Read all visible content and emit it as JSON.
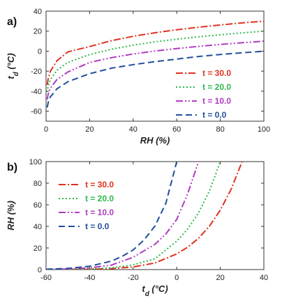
{
  "chart_data": [
    {
      "panel": "a)",
      "type": "line",
      "xlabel": "RH (%)",
      "ylabel_main": "t",
      "ylabel_sub": "d",
      "ylabel_unit": "(°C)",
      "xlim": [
        0,
        100
      ],
      "ylim": [
        -70,
        40
      ],
      "xticks": [
        0,
        20,
        40,
        60,
        80,
        100
      ],
      "yticks": [
        -60,
        -40,
        -20,
        0,
        20,
        40
      ],
      "legend_position": "lower-right",
      "series": [
        {
          "name": "t =  30.0",
          "color": "#e0301e",
          "dash": "10,3,2,3",
          "x": [
            0.5,
            1,
            2,
            5,
            10,
            20,
            30,
            40,
            50,
            60,
            70,
            80,
            90,
            100
          ],
          "y": [
            -33.8,
            -27.3,
            -20.0,
            -9.5,
            -0.7,
            4.6,
            10.5,
            14.9,
            18.4,
            21.4,
            23.9,
            26.2,
            28.2,
            30.0
          ]
        },
        {
          "name": "t =  20.0",
          "color": "#2db84a",
          "dash": "2,3",
          "x": [
            0.5,
            1,
            2,
            5,
            10,
            20,
            30,
            40,
            50,
            60,
            70,
            80,
            90,
            100
          ],
          "y": [
            -40.8,
            -35.0,
            -28.5,
            -19.1,
            -11.2,
            -3.4,
            1.9,
            6.0,
            9.3,
            12.0,
            14.4,
            16.4,
            18.3,
            20.0
          ]
        },
        {
          "name": "t =  10.0",
          "color": "#b03bc0",
          "dash": "10,3,2,3,2,3",
          "x": [
            0.5,
            1,
            2,
            5,
            10,
            20,
            30,
            40,
            50,
            60,
            70,
            80,
            90,
            100
          ],
          "y": [
            -48.3,
            -42.8,
            -36.9,
            -28.3,
            -20.8,
            -11.3,
            -6.5,
            -2.8,
            0.1,
            2.6,
            4.8,
            6.7,
            8.4,
            10.0
          ]
        },
        {
          "name": "t =  0.0",
          "color": "#1f4e9c",
          "dash": "9,5",
          "x": [
            0.5,
            1,
            2,
            5,
            10,
            20,
            30,
            40,
            50,
            60,
            70,
            80,
            90,
            100
          ],
          "y": [
            -56.3,
            -51.1,
            -45.6,
            -37.6,
            -30.5,
            -22.5,
            -17.0,
            -13.5,
            -10.5,
            -7.9,
            -5.3,
            -3.3,
            -1.6,
            0.0
          ]
        }
      ]
    },
    {
      "panel": "b)",
      "type": "line",
      "xlabel_main": "t",
      "xlabel_sub": "d",
      "xlabel_unit": "(°C)",
      "ylabel": "RH (%)",
      "xlim": [
        -60,
        40
      ],
      "ylim": [
        0,
        100
      ],
      "xticks": [
        -60,
        -40,
        -20,
        0,
        20,
        40
      ],
      "yticks": [
        0,
        20,
        40,
        60,
        80,
        100
      ],
      "legend_position": "upper-left",
      "series": [
        {
          "name": "t =  30.0",
          "color": "#e0301e",
          "dash": "10,3,2,3",
          "x": [
            -60,
            -50,
            -40,
            -30,
            -20,
            -10,
            0,
            5,
            10,
            15,
            20,
            25,
            30
          ],
          "y": [
            0.1,
            0.1,
            0.3,
            0.9,
            2.4,
            6.1,
            14.5,
            20.7,
            29.0,
            40.2,
            55.1,
            74.6,
            100
          ]
        },
        {
          "name": "t =  20.0",
          "color": "#2db84a",
          "dash": "2,3",
          "x": [
            -60,
            -50,
            -40,
            -30,
            -20,
            -10,
            0,
            5,
            10,
            15,
            20
          ],
          "y": [
            0.1,
            0.2,
            0.5,
            1.6,
            4.4,
            10.0,
            26.3,
            37.5,
            52.6,
            72.8,
            100
          ]
        },
        {
          "name": "t =  10.0",
          "color": "#b03bc0",
          "dash": "10,3,2,3,2,3",
          "x": [
            -60,
            -50,
            -40,
            -30,
            -20,
            -10,
            -5,
            0,
            5,
            10
          ],
          "y": [
            0.2,
            0.5,
            1.7,
            4.1,
            11.4,
            23.4,
            33.0,
            46.5,
            70.1,
            100
          ]
        },
        {
          "name": "t =  0.0",
          "color": "#1f4e9c",
          "dash": "9,5",
          "x": [
            -60,
            -50,
            -40,
            -30,
            -25,
            -20,
            -15,
            -10,
            -5,
            0
          ],
          "y": [
            0.3,
            1.1,
            3.1,
            7.8,
            12.3,
            18.2,
            27.5,
            40.3,
            61.4,
            100
          ]
        }
      ]
    }
  ]
}
